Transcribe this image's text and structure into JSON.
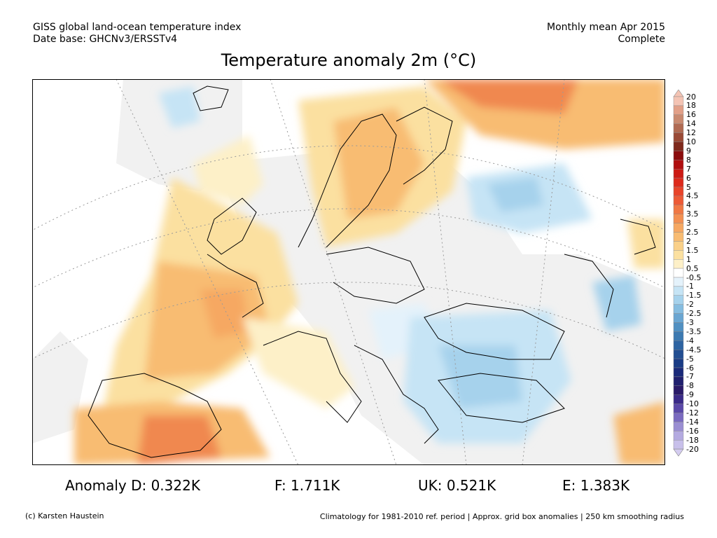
{
  "header": {
    "line1_left": "GISS global land-ocean temperature index",
    "line2_left": "Date base: GHCNv3/ERSSTv4",
    "line1_right": "Monthly mean Apr 2015",
    "line2_right": "Complete"
  },
  "title": "Temperature anomaly 2m (°C)",
  "stats": {
    "d": "Anomaly D: 0.322K",
    "f": "F: 1.711K",
    "uk": "UK: 0.521K",
    "e": "E: 1.383K"
  },
  "footer": {
    "left": "(c) Karsten Haustein",
    "right": "Climatology for 1981-2010 ref. period | Approx. grid box anomalies | 250 km smoothing radius"
  },
  "colorbar": {
    "labels": [
      "20",
      "18",
      "16",
      "14",
      "12",
      "10",
      "9",
      "8",
      "7",
      "6",
      "5",
      "4.5",
      "4",
      "3.5",
      "3",
      "2.5",
      "2",
      "1.5",
      "1",
      "0.5",
      "-0.5",
      "-1",
      "-1.5",
      "-2",
      "-2.5",
      "-3",
      "-3.5",
      "-4",
      "-4.5",
      "-5",
      "-6",
      "-7",
      "-8",
      "-9",
      "-10",
      "-12",
      "-14",
      "-16",
      "-18",
      "-20"
    ],
    "colors": [
      "#f4c4b4",
      "#e2a088",
      "#c98a70",
      "#b06a52",
      "#9a4a36",
      "#7f2a1c",
      "#8b0d0d",
      "#b00f0f",
      "#cc1a14",
      "#dd2a1c",
      "#e8442a",
      "#ed5a36",
      "#f07844",
      "#f39052",
      "#f6a862",
      "#f8bc72",
      "#fad088",
      "#fbe0a0",
      "#fdf0c8",
      "#ffffff",
      "#e4f2fb",
      "#c6e4f5",
      "#a6d2ec",
      "#86bde0",
      "#6aa6d2",
      "#5090c2",
      "#3c7ab2",
      "#2e64a2",
      "#224e92",
      "#1a3c86",
      "#1a2a7a",
      "#20206e",
      "#2a1a68",
      "#3a2a88",
      "#5a48a8",
      "#7a6ac0",
      "#9a8ed2",
      "#b4aae0",
      "#c8c0ea"
    ],
    "arrow_top": "#f4c4b4",
    "arrow_bottom": "#d4ccf0"
  },
  "map": {
    "land_anomaly_colors": {
      "warm_1": "#fdf0c8",
      "warm_2": "#fbe0a0",
      "warm_3": "#f8bc72",
      "warm_4": "#f6a862",
      "warm_5": "#f08850",
      "cool_1": "#e4f2fb",
      "cool_2": "#c6e4f5",
      "cool_3": "#a6d2ec",
      "missing": "#f2f2f2"
    }
  }
}
